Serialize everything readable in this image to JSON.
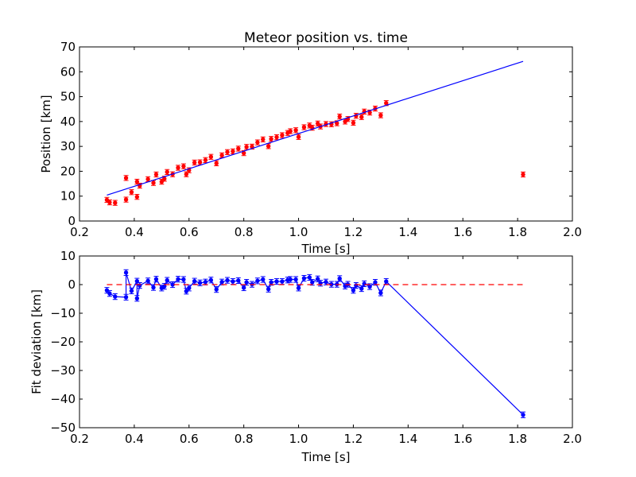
{
  "chart_data": [
    {
      "type": "scatter",
      "title": "Meteor position vs. time",
      "xlabel": "Time [s]",
      "ylabel": "Position [km]",
      "xlim": [
        0.2,
        2.0
      ],
      "ylim": [
        0,
        70
      ],
      "xticks": [
        "0.2",
        "0.4",
        "0.6",
        "0.8",
        "1.0",
        "1.2",
        "1.4",
        "1.6",
        "1.8",
        "2.0"
      ],
      "yticks": [
        "0",
        "10",
        "20",
        "30",
        "40",
        "50",
        "60",
        "70"
      ],
      "grid": false,
      "legend": "none",
      "series": [
        {
          "kind": "errorbar-markers",
          "color": "#ff0000",
          "x": [
            0.3,
            0.31,
            0.33,
            0.37,
            0.37,
            0.39,
            0.41,
            0.41,
            0.42,
            0.45,
            0.47,
            0.48,
            0.5,
            0.51,
            0.52,
            0.54,
            0.56,
            0.58,
            0.59,
            0.6,
            0.62,
            0.64,
            0.66,
            0.68,
            0.7,
            0.72,
            0.74,
            0.76,
            0.78,
            0.8,
            0.81,
            0.83,
            0.85,
            0.87,
            0.89,
            0.9,
            0.92,
            0.94,
            0.96,
            0.97,
            0.99,
            1.0,
            1.02,
            1.04,
            1.05,
            1.07,
            1.08,
            1.1,
            1.12,
            1.14,
            1.15,
            1.17,
            1.18,
            1.2,
            1.21,
            1.23,
            1.24,
            1.26,
            1.28,
            1.3,
            1.32,
            1.82
          ],
          "y": [
            8.5,
            7.5,
            7.3,
            8.6,
            17.3,
            11.6,
            15.8,
            9.7,
            14.2,
            16.8,
            15.3,
            18.7,
            15.8,
            17.0,
            19.7,
            18.8,
            21.4,
            22.0,
            18.8,
            20.4,
            23.5,
            23.6,
            24.5,
            25.8,
            23.2,
            26.4,
            27.7,
            28.0,
            29.1,
            27.3,
            29.8,
            29.9,
            31.6,
            32.8,
            30.1,
            33.0,
            33.7,
            34.5,
            35.4,
            36.1,
            36.5,
            33.8,
            37.7,
            38.4,
            37.5,
            39.2,
            38.0,
            39.0,
            38.9,
            39.3,
            42.0,
            40.0,
            41.0,
            39.5,
            42.3,
            41.8,
            44.0,
            43.6,
            45.2,
            42.5,
            47.4,
            18.7
          ],
          "yerr": 1.0
        },
        {
          "kind": "line",
          "color": "#0000ff",
          "x": [
            0.3,
            1.82
          ],
          "y": [
            10.4,
            64.2
          ]
        }
      ]
    },
    {
      "type": "line",
      "xlabel": "Time [s]",
      "ylabel": "Fit deviation [km]",
      "xlim": [
        0.2,
        2.0
      ],
      "ylim": [
        -50,
        10
      ],
      "xticks": [
        "0.2",
        "0.4",
        "0.6",
        "0.8",
        "1.0",
        "1.2",
        "1.4",
        "1.6",
        "1.8",
        "2.0"
      ],
      "yticks": [
        "−50",
        "−40",
        "−30",
        "−20",
        "−10",
        "0",
        "10"
      ],
      "grid": false,
      "legend": "none",
      "series": [
        {
          "kind": "errorbar-line",
          "color": "#0000ff",
          "x": [
            0.3,
            0.31,
            0.33,
            0.37,
            0.37,
            0.39,
            0.41,
            0.41,
            0.42,
            0.45,
            0.47,
            0.48,
            0.5,
            0.51,
            0.52,
            0.54,
            0.56,
            0.58,
            0.59,
            0.6,
            0.62,
            0.64,
            0.66,
            0.68,
            0.7,
            0.72,
            0.74,
            0.76,
            0.78,
            0.8,
            0.81,
            0.83,
            0.85,
            0.87,
            0.89,
            0.9,
            0.92,
            0.94,
            0.96,
            0.97,
            0.99,
            1.0,
            1.02,
            1.04,
            1.05,
            1.07,
            1.08,
            1.1,
            1.12,
            1.14,
            1.15,
            1.17,
            1.18,
            1.2,
            1.21,
            1.23,
            1.24,
            1.26,
            1.28,
            1.3,
            1.32,
            1.82
          ],
          "y": [
            -2.0,
            -3.1,
            -4.2,
            -4.4,
            4.2,
            -2.2,
            1.2,
            -4.8,
            -0.3,
            1.3,
            -1.0,
            1.9,
            -1.2,
            -0.6,
            1.5,
            0.0,
            1.9,
            1.8,
            -2.3,
            -1.2,
            1.2,
            0.6,
            0.9,
            1.6,
            -1.7,
            0.9,
            1.5,
            1.1,
            1.4,
            -1.1,
            0.8,
            0.1,
            1.3,
            1.8,
            -1.6,
            0.8,
            1.1,
            1.1,
            1.6,
            1.8,
            1.8,
            -1.2,
            2.2,
            2.5,
            0.8,
            2.0,
            0.5,
            0.9,
            0.1,
            0.1,
            2.1,
            -0.5,
            0.1,
            -2.0,
            -0.3,
            -1.4,
            0.3,
            -0.7,
            0.8,
            -2.9,
            1.1,
            -45.5
          ],
          "yerr": 1.0
        },
        {
          "kind": "dashed-line",
          "color": "#ff0000",
          "x": [
            0.3,
            1.82
          ],
          "y": [
            0,
            0
          ]
        }
      ]
    }
  ]
}
